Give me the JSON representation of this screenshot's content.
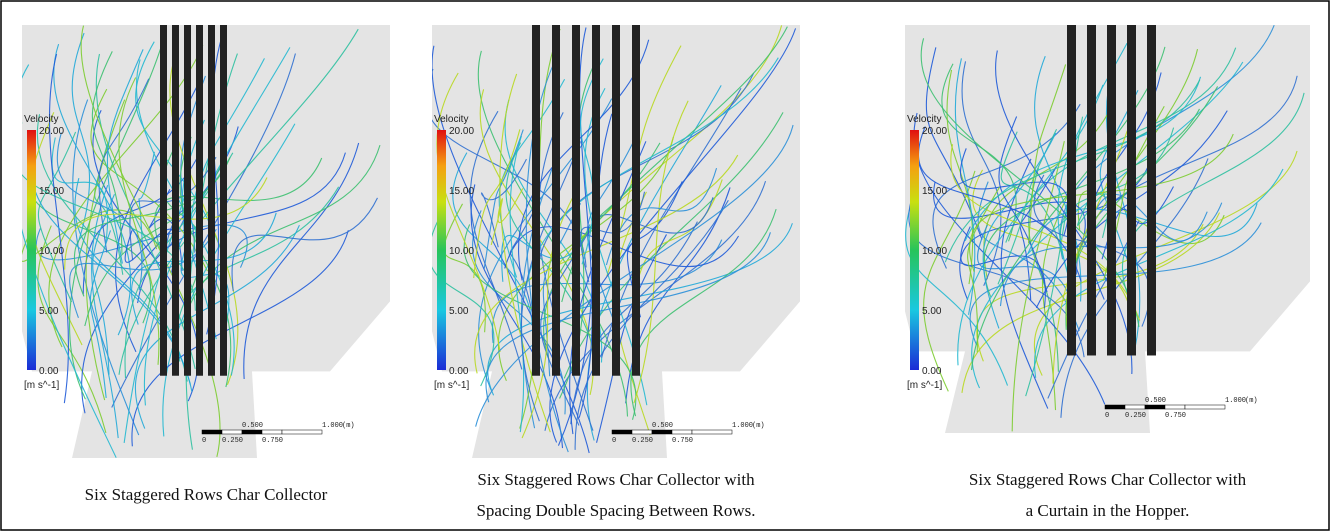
{
  "panels": [
    {
      "legend": {
        "title": "Velocity",
        "ticks": [
          "20.00",
          "15.00",
          "10.00",
          "5.00",
          "0.00"
        ],
        "unit": "[m s^-1]"
      },
      "scale": {
        "labels": [
          "0",
          "0.250",
          "0.500",
          "0.750",
          "1.000",
          "(m)"
        ]
      },
      "caption": [
        "Six Staggered Rows Char Collector"
      ]
    },
    {
      "legend": {
        "title": "Velocity",
        "ticks": [
          "20.00",
          "15.00",
          "10.00",
          "5.00",
          "0.00"
        ],
        "unit": "[m s^-1]"
      },
      "scale": {
        "labels": [
          "0",
          "0.250",
          "0.500",
          "0.750",
          "1.000",
          "(m)"
        ]
      },
      "caption": [
        "Six Staggered Rows Char Collector with",
        "Spacing Double Spacing Between Rows."
      ]
    },
    {
      "legend": {
        "title": "Velocity",
        "ticks": [
          "20.00",
          "15.00",
          "10.00",
          "5.00",
          "0.00"
        ],
        "unit": "[m s^-1]"
      },
      "scale": {
        "labels": [
          "0",
          "0.250",
          "0.500",
          "0.750",
          "1.000",
          "(m)"
        ]
      },
      "caption": [
        "Six Staggered Rows Char Collector with",
        "a Curtain in the Hopper."
      ]
    }
  ]
}
